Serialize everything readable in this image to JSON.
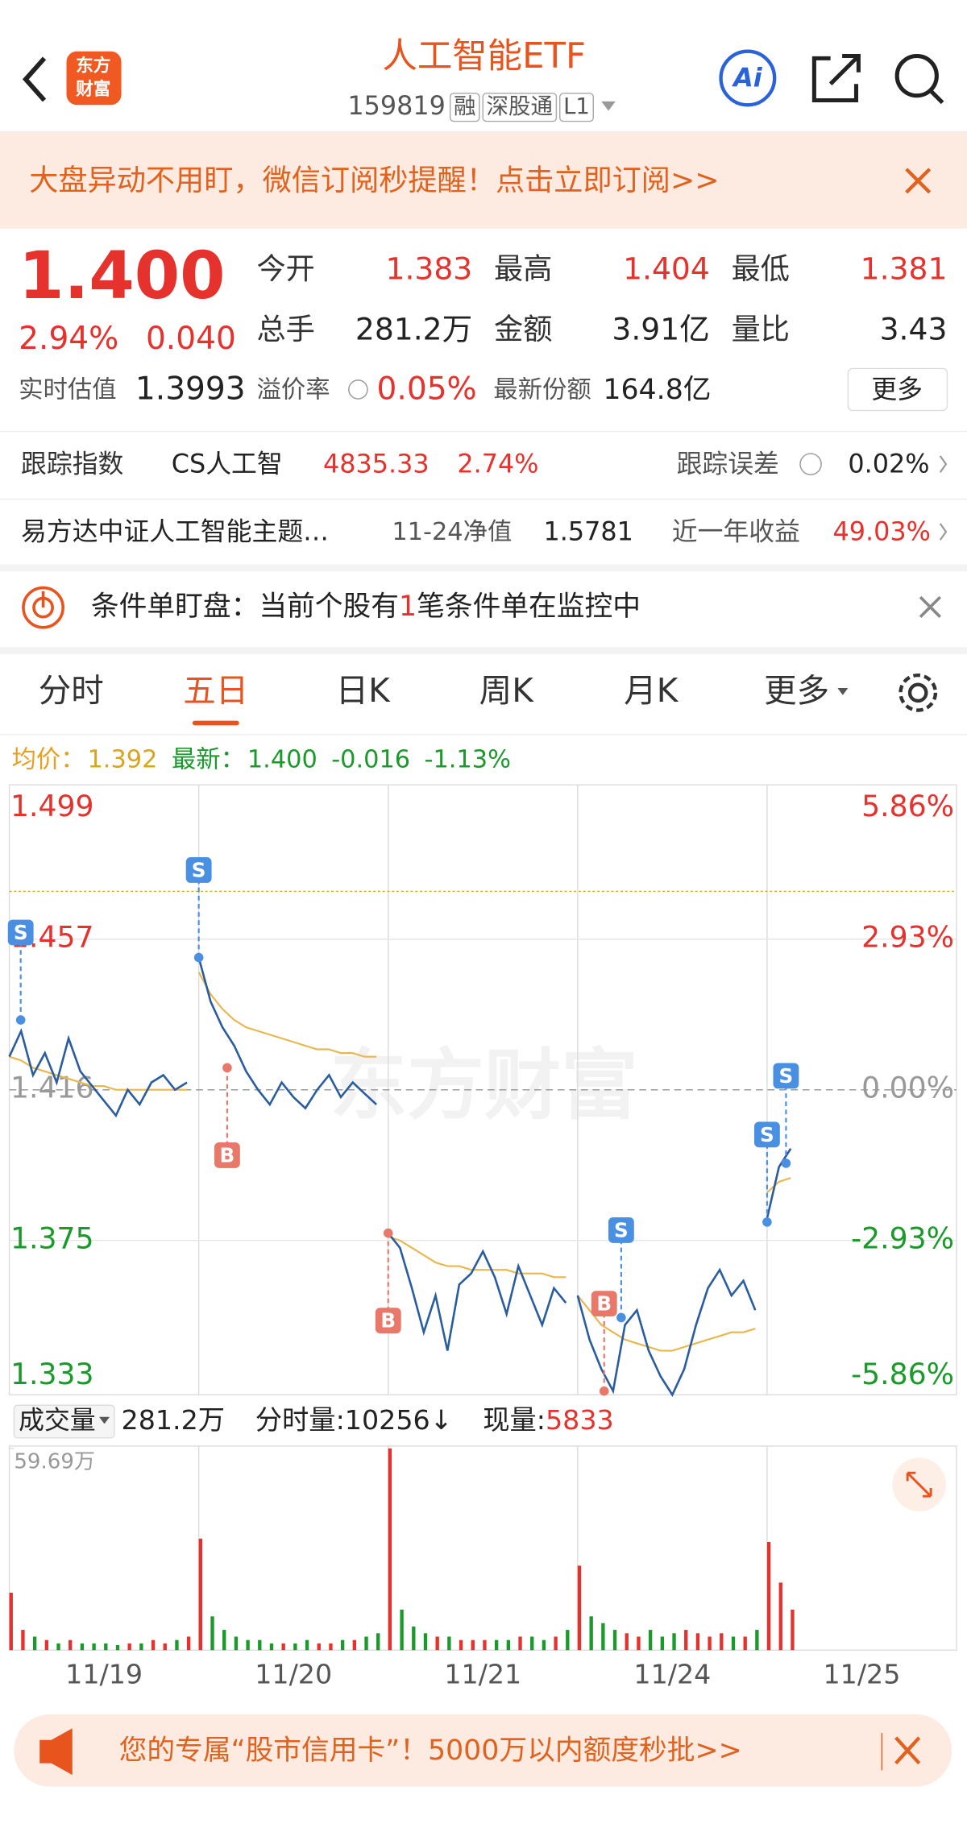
{
  "header": {
    "logo": [
      "东方",
      "财富"
    ],
    "title": "人工智能ETF",
    "code": "159819",
    "tags": [
      "融",
      "深股通",
      "L1"
    ],
    "ai": "Ai"
  },
  "banner": {
    "text": "大盘异动不用盯，微信订阅秒提醒！点击立即订阅>>"
  },
  "quote": {
    "price": "1.400",
    "change_pct": "2.94%",
    "change": "0.040",
    "fields": [
      {
        "label": "今开",
        "value": "1.383"
      },
      {
        "label": "最高",
        "value": "1.404"
      },
      {
        "label": "最低",
        "value": "1.381"
      },
      {
        "label": "总手",
        "value": "281.2万"
      },
      {
        "label": "金额",
        "value": "3.91亿"
      },
      {
        "label": "量比",
        "value": "3.43"
      }
    ],
    "est_label": "实时估值",
    "est": "1.3993",
    "premium_label": "溢价率",
    "premium": "0.05%",
    "shares_label": "最新份额",
    "shares": "164.8亿",
    "more": "更多"
  },
  "tracking": {
    "label": "跟踪指数",
    "index": "CS人工智",
    "index_value": "4835.33",
    "index_pct": "2.74%",
    "err_label": "跟踪误差",
    "err": "0.02%"
  },
  "fund": {
    "name": "易方达中证人工智能主题…",
    "nav_label": "11-24净值",
    "nav": "1.5781",
    "ret_label": "近一年收益",
    "ret": "49.03%"
  },
  "alert": {
    "before": "条件单盯盘：当前个股有",
    "count": "1",
    "after": "笔条件单在监控中"
  },
  "tabs": {
    "items": [
      "分时",
      "五日",
      "日K",
      "周K",
      "月K",
      "更多"
    ],
    "active": 1
  },
  "chart_data": [
    {
      "type": "line",
      "avg_label": "均价：",
      "avg": "1.392",
      "latest_label": "最新：",
      "latest": "1.400",
      "diff": "-0.016",
      "diff_pct": "-1.13%",
      "watermark": "东方财富",
      "categories": [
        "11/19",
        "11/20",
        "11/21",
        "11/24",
        "11/25"
      ],
      "ylim": [
        1.333,
        1.499
      ],
      "yticks": [
        1.499,
        1.457,
        1.416,
        1.375,
        1.333
      ],
      "y2lim": [
        -5.86,
        5.86
      ],
      "y2ticks": [
        {
          "value": 5.86,
          "label": "5.86%"
        },
        {
          "value": 2.93,
          "label": "2.93%"
        },
        {
          "value": 0,
          "label": "0.00%"
        },
        {
          "value": -2.93,
          "label": "-2.93%"
        },
        {
          "value": -5.86,
          "label": "-5.86%"
        }
      ],
      "alert_line": 1.47,
      "grid": true,
      "price": {
        "color": "#2a5d9f",
        "days": [
          [
            1.425,
            1.432,
            1.42,
            1.426,
            1.418,
            1.43,
            1.421,
            1.417,
            1.413,
            1.409,
            1.416,
            1.412,
            1.418,
            1.42,
            1.416,
            1.418
          ],
          [
            1.452,
            1.44,
            1.433,
            1.428,
            1.421,
            1.416,
            1.412,
            1.418,
            1.414,
            1.411,
            1.416,
            1.42,
            1.414,
            1.418,
            1.415,
            1.412
          ],
          [
            1.377,
            1.373,
            1.362,
            1.35,
            1.36,
            1.345,
            1.363,
            1.366,
            1.372,
            1.365,
            1.355,
            1.368,
            1.36,
            1.352,
            1.362,
            1.358
          ],
          [
            1.36,
            1.348,
            1.34,
            1.334,
            1.352,
            1.356,
            1.345,
            1.338,
            1.333,
            1.34,
            1.352,
            1.362,
            1.367,
            1.36,
            1.364,
            1.356
          ],
          [
            1.381,
            1.395,
            1.4,
            null,
            null,
            null,
            null,
            null,
            null,
            null,
            null,
            null,
            null,
            null,
            null,
            null
          ]
        ]
      },
      "average": {
        "color": "#e9b74f",
        "days": [
          [
            1.425,
            1.424,
            1.422,
            1.421,
            1.42,
            1.419,
            1.418,
            1.417,
            1.417,
            1.416,
            1.416,
            1.416,
            1.416,
            1.416,
            1.416,
            1.416
          ],
          [
            1.448,
            1.442,
            1.438,
            1.435,
            1.433,
            1.432,
            1.431,
            1.43,
            1.429,
            1.428,
            1.427,
            1.427,
            1.426,
            1.426,
            1.425,
            1.425
          ],
          [
            1.376,
            1.375,
            1.373,
            1.371,
            1.369,
            1.368,
            1.368,
            1.367,
            1.367,
            1.367,
            1.367,
            1.366,
            1.366,
            1.366,
            1.365,
            1.365
          ],
          [
            1.36,
            1.356,
            1.352,
            1.35,
            1.348,
            1.347,
            1.346,
            1.345,
            1.345,
            1.346,
            1.347,
            1.348,
            1.349,
            1.35,
            1.35,
            1.351
          ],
          [
            1.388,
            1.391,
            1.392,
            null,
            null,
            null,
            null,
            null,
            null,
            null,
            null,
            null,
            null,
            null,
            null,
            null
          ]
        ]
      },
      "trades": [
        {
          "side": "S",
          "day": 0,
          "t": 0.06,
          "price": 1.435
        },
        {
          "side": "S",
          "day": 1,
          "t": 0.0,
          "price": 1.452
        },
        {
          "side": "B",
          "day": 1,
          "t": 0.15,
          "price": 1.422
        },
        {
          "side": "B",
          "day": 2,
          "t": 0.0,
          "price": 1.377
        },
        {
          "side": "S",
          "day": 3,
          "t": 0.23,
          "price": 1.354
        },
        {
          "side": "B",
          "day": 3,
          "t": 0.14,
          "price": 1.334
        },
        {
          "side": "S",
          "day": 4,
          "t": 0.0,
          "price": 1.38
        },
        {
          "side": "S",
          "day": 4,
          "t": 0.1,
          "price": 1.396
        }
      ]
    },
    {
      "type": "bar",
      "label": "成交量",
      "total": "281.2万",
      "minute_vol": "分时量:10256↓",
      "now_label": "现量:",
      "now": "5833",
      "ylim": [
        0,
        59.69
      ],
      "yticks": [
        {
          "value": 59.69,
          "label": "59.69万"
        }
      ],
      "days": [
        [
          17,
          6,
          4,
          3,
          2,
          3,
          2,
          2,
          2,
          1.5,
          2,
          2,
          3,
          2,
          3,
          4
        ],
        [
          33,
          10,
          6,
          4,
          3,
          3,
          2,
          2,
          2,
          3,
          2,
          2,
          3,
          3,
          4,
          5
        ],
        [
          59.69,
          12,
          7,
          5,
          4,
          4,
          3,
          3,
          3,
          3,
          3,
          4,
          4,
          3,
          4,
          6
        ],
        [
          25,
          10,
          8,
          6,
          5,
          4,
          6,
          4,
          5,
          6,
          5,
          4,
          5,
          4,
          4,
          6
        ],
        [
          32,
          20,
          12,
          null,
          null,
          null,
          null,
          null,
          null,
          null,
          null,
          null,
          null,
          null,
          null,
          null
        ]
      ]
    }
  ],
  "ad": {
    "text": "您的专属“股市信用卡”！5000万以内额度秒批>>"
  }
}
